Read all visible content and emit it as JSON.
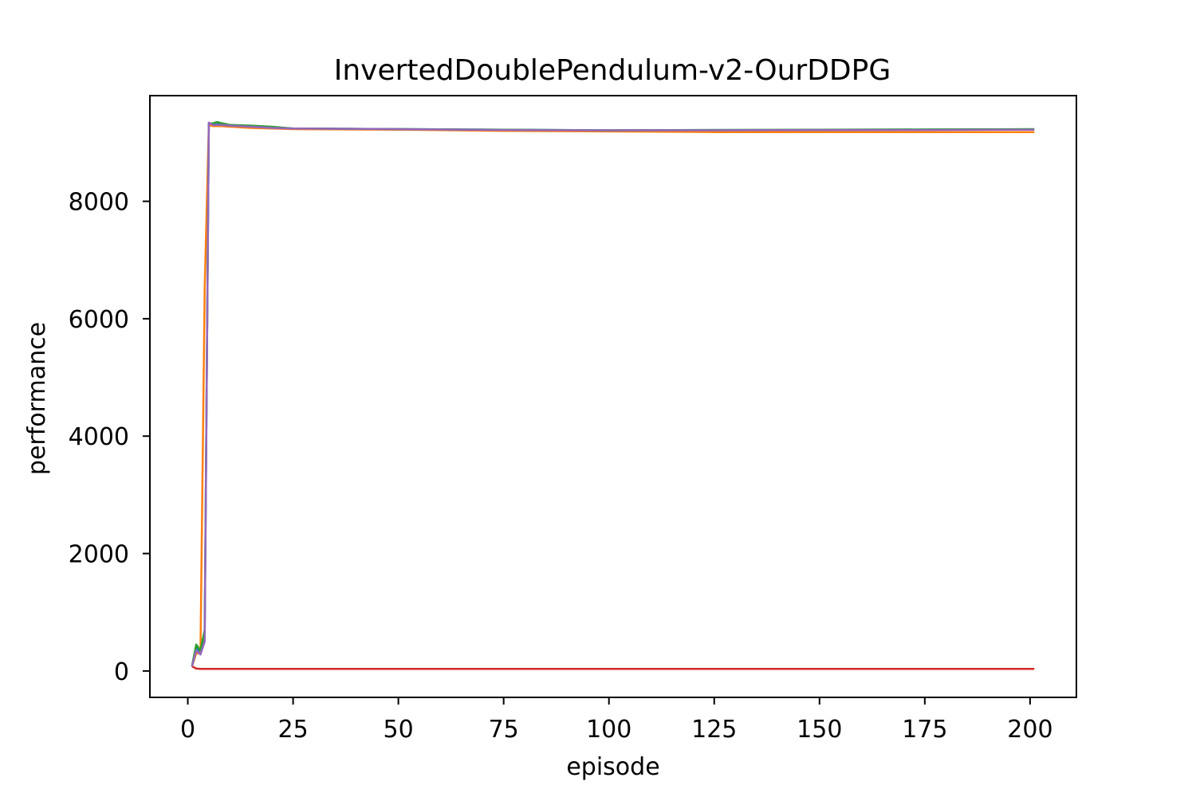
{
  "chart_data": {
    "type": "line",
    "title": "InvertedDoublePendulum-v2-OurDDPG",
    "xlabel": "episode",
    "ylabel": "performance",
    "xlim": [
      -9,
      211
    ],
    "ylim": [
      -450,
      9800
    ],
    "x_ticks": [
      0,
      25,
      50,
      75,
      100,
      125,
      150,
      175,
      200
    ],
    "y_ticks": [
      0,
      2000,
      4000,
      6000,
      8000
    ],
    "grid": false,
    "legend": "none",
    "series": [
      {
        "color": "#1f77b4",
        "x": [
          1,
          2,
          3,
          4,
          5,
          6,
          8,
          10,
          15,
          20,
          25,
          50,
          75,
          100,
          125,
          150,
          175,
          200,
          201
        ],
        "y": [
          80,
          420,
          300,
          600,
          9330,
          9300,
          9330,
          9300,
          9280,
          9260,
          9240,
          9230,
          9220,
          9210,
          9215,
          9215,
          9220,
          9220,
          9220
        ]
      },
      {
        "color": "#ff7f0e",
        "x": [
          1,
          2,
          3,
          4,
          5,
          6,
          8,
          10,
          15,
          20,
          25,
          50,
          75,
          100,
          125,
          150,
          175,
          200,
          201
        ],
        "y": [
          80,
          300,
          300,
          6500,
          9300,
          9280,
          9280,
          9270,
          9250,
          9240,
          9230,
          9220,
          9200,
          9190,
          9180,
          9180,
          9180,
          9180,
          9180
        ]
      },
      {
        "color": "#2ca02c",
        "x": [
          1,
          2,
          3,
          4,
          5,
          6,
          7,
          8,
          10,
          15,
          20,
          25,
          50,
          75,
          100,
          125,
          150,
          175,
          200,
          201
        ],
        "y": [
          80,
          450,
          350,
          700,
          9320,
          9330,
          9350,
          9330,
          9300,
          9290,
          9270,
          9240,
          9230,
          9220,
          9210,
          9215,
          9220,
          9225,
          9230,
          9230
        ]
      },
      {
        "color": "#d62728",
        "x": [
          1,
          2,
          3,
          5,
          10,
          25,
          50,
          75,
          100,
          125,
          150,
          175,
          200,
          201
        ],
        "y": [
          80,
          40,
          35,
          35,
          35,
          35,
          35,
          35,
          35,
          35,
          35,
          35,
          35,
          35
        ]
      },
      {
        "color": "#9467bd",
        "x": [
          1,
          2,
          3,
          4,
          5,
          6,
          8,
          10,
          15,
          20,
          25,
          50,
          75,
          100,
          125,
          150,
          175,
          200,
          201
        ],
        "y": [
          80,
          350,
          280,
          500,
          9340,
          9300,
          9300,
          9290,
          9270,
          9250,
          9240,
          9230,
          9215,
          9210,
          9210,
          9215,
          9215,
          9220,
          9220
        ]
      }
    ]
  }
}
